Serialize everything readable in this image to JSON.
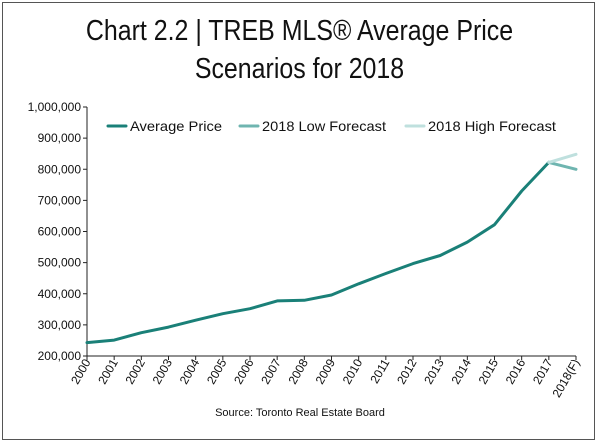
{
  "chart_data": {
    "type": "line",
    "title_line1": "Chart 2.2 | TREB MLS® Average Price",
    "title_line2": "Scenarios for 2018",
    "source": "Source: Toronto Real Estate Board",
    "categories": [
      "2000",
      "2001",
      "2002",
      "2003",
      "2004",
      "2005",
      "2006",
      "2007",
      "2008",
      "2009",
      "2010",
      "2011",
      "2012",
      "2013",
      "2014",
      "2015",
      "2016",
      "2017",
      "2018(F)"
    ],
    "yticks": [
      "200,000",
      "300,000",
      "400,000",
      "500,000",
      "600,000",
      "700,000",
      "800,000",
      "900,000",
      "1,000,000"
    ],
    "ylim": [
      200000,
      1000000
    ],
    "legend_position": "top-right",
    "grid": false,
    "series": [
      {
        "name": "Average Price",
        "color": "#1a8078",
        "values": [
          243000,
          251000,
          275000,
          293000,
          315000,
          336000,
          352000,
          377000,
          379000,
          396000,
          432000,
          465000,
          497000,
          523000,
          566000,
          622000,
          730000,
          822000,
          null
        ]
      },
      {
        "name": "2018 Low Forecast",
        "color": "#6fb5b0",
        "values": [
          null,
          null,
          null,
          null,
          null,
          null,
          null,
          null,
          null,
          null,
          null,
          null,
          null,
          null,
          null,
          null,
          null,
          822000,
          800000
        ]
      },
      {
        "name": "2018 High Forecast",
        "color": "#bfe0de",
        "values": [
          null,
          null,
          null,
          null,
          null,
          null,
          null,
          null,
          null,
          null,
          null,
          null,
          null,
          null,
          null,
          null,
          null,
          822000,
          848000
        ]
      }
    ]
  }
}
